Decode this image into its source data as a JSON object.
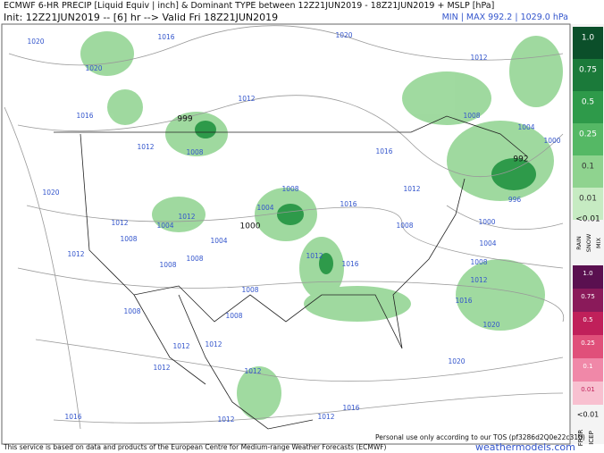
{
  "header": {
    "title": "ECMWF 6-HR PRECIP [Liquid Equiv | inch] & Dominant TYPE between 12Z21JUN2019 - 18Z21JUN2019 + MSLP [hPa]",
    "init": "Init: 12Z21JUN2019 -- [6] hr --> Valid Fri 18Z21JUN2019",
    "minmax": "MIN | MAX 992.2 | 1029.0 hPa"
  },
  "legend": {
    "rain_scale": [
      "1.0",
      "0.75",
      "0.5",
      "0.25",
      "0.1",
      "0.01"
    ],
    "rain_below": "<0.01",
    "rain_types": [
      "RAIN",
      "SNOW",
      "MIX"
    ],
    "frzr_scale": [
      "1.0",
      "0.75",
      "0.5",
      "0.25",
      "0.1",
      "0.01"
    ],
    "frzr_below": "<0.01",
    "frzr_types": [
      "FRZR",
      "ICEP"
    ]
  },
  "footer": {
    "credit": "This service is based on data and products of the European Centre for Medium-range Weather Forecasts (ECMWF)",
    "tos": "Personal use only according to our TOS (pf3286d2Q0e22c310)",
    "site": "weathermodels.com"
  },
  "map": {
    "isobar_labels": [
      "1020",
      "1016",
      "1020",
      "1012",
      "1020",
      "1016",
      "1012",
      "999",
      "1008",
      "1004",
      "1000",
      "992",
      "996",
      "1012",
      "1008",
      "1016",
      "1020",
      "1012",
      "1004",
      "1008",
      "1016",
      "1012",
      "1008",
      "1000",
      "1012",
      "1008",
      "1004",
      "1000",
      "1004",
      "1004",
      "1012",
      "1008",
      "1008",
      "1008",
      "1012",
      "1016",
      "1012",
      "1008",
      "1008",
      "1016",
      "1008",
      "1020",
      "1012",
      "1012",
      "1012",
      "1012",
      "1020",
      "1016",
      "1012",
      "1016",
      "1012"
    ]
  }
}
